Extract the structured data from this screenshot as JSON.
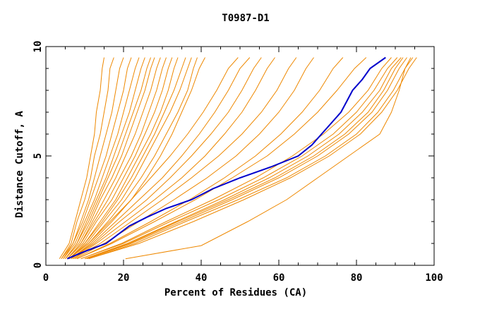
{
  "chart_data": {
    "type": "line",
    "title": "T0987-D1",
    "xlabel": "Percent of Residues (CA)",
    "ylabel": "Distance Cutoff, A",
    "xlim": [
      0,
      100
    ],
    "ylim": [
      0,
      10
    ],
    "xticks": [
      0,
      20,
      40,
      60,
      80,
      100
    ],
    "yticks": [
      0,
      5,
      10
    ],
    "grid": false,
    "colors": {
      "models": "#ee8800",
      "highlight": "#0000cc"
    },
    "highlight_series": {
      "y": [
        0.3,
        0.6,
        1.0,
        1.4,
        1.8,
        2.2,
        2.6,
        3.0,
        3.5,
        4.0,
        4.5,
        5.0,
        5.5,
        6.0,
        6.5,
        7.0,
        7.5,
        8.0,
        8.5,
        9.0,
        9.5
      ],
      "x": [
        5.5,
        9.5,
        15.5,
        18.5,
        21.5,
        26.0,
        31.0,
        37.5,
        43.0,
        50.0,
        58.0,
        65.0,
        68.5,
        71.0,
        73.5,
        76.0,
        77.5,
        79.0,
        81.5,
        83.5,
        87.5
      ]
    },
    "series": [
      {
        "y": [
          0.3,
          1,
          2,
          3,
          4,
          5,
          6,
          7,
          8,
          9,
          9.5
        ],
        "x": [
          3.5,
          6,
          7.5,
          9,
          10.5,
          11.5,
          12.5,
          13,
          14,
          14.5,
          15
        ]
      },
      {
        "y": [
          0.3,
          1,
          2,
          3,
          4,
          5,
          6,
          7,
          8,
          9,
          9.5
        ],
        "x": [
          4,
          6.5,
          8,
          10,
          11.5,
          12.5,
          14,
          15,
          16,
          16.5,
          17.5
        ]
      },
      {
        "y": [
          0.3,
          1,
          2,
          3,
          4,
          5,
          6,
          7,
          8,
          9,
          9.5
        ],
        "x": [
          4,
          7,
          9,
          11,
          12.5,
          14,
          15.5,
          17,
          18,
          19,
          20
        ]
      },
      {
        "y": [
          0.3,
          1,
          2,
          3,
          4,
          5,
          6,
          7,
          8,
          9,
          9.5
        ],
        "x": [
          4.5,
          7,
          9.5,
          11.5,
          13.5,
          15.5,
          17,
          18.5,
          20,
          21,
          22
        ]
      },
      {
        "y": [
          0.3,
          1,
          2,
          3,
          4,
          5,
          6,
          7,
          8,
          9,
          9.5
        ],
        "x": [
          4.5,
          7.5,
          10,
          12.5,
          14.5,
          16.5,
          18.5,
          20,
          21.5,
          23,
          24
        ]
      },
      {
        "y": [
          0.3,
          1,
          2,
          3,
          4,
          5,
          6,
          7,
          8,
          9,
          9.5
        ],
        "x": [
          5,
          8,
          10.5,
          13,
          15.5,
          17.5,
          19.5,
          21.5,
          23,
          24.5,
          25.5
        ]
      },
      {
        "y": [
          0.3,
          1,
          2,
          3,
          4,
          5,
          6,
          7,
          8,
          9,
          9.5
        ],
        "x": [
          5,
          8,
          11,
          13.5,
          16,
          18.5,
          20.5,
          22.5,
          24.5,
          26,
          27
        ]
      },
      {
        "y": [
          0.3,
          1,
          2,
          3,
          4,
          5,
          6,
          7,
          8,
          9,
          9.5
        ],
        "x": [
          5,
          8.5,
          11.5,
          14,
          17,
          19.5,
          21.5,
          23.5,
          25.5,
          27,
          28
        ]
      },
      {
        "y": [
          0.3,
          1,
          2,
          3,
          4,
          5,
          6,
          7,
          8,
          9,
          9.5
        ],
        "x": [
          5.5,
          9,
          12,
          15,
          18,
          20.5,
          23,
          25,
          27,
          28.5,
          29.5
        ]
      },
      {
        "y": [
          0.3,
          1,
          2,
          3,
          4,
          5,
          6,
          7,
          8,
          9,
          9.5
        ],
        "x": [
          5.5,
          9,
          12.5,
          16,
          19,
          22,
          24.5,
          26.5,
          28.5,
          30,
          31
        ]
      },
      {
        "y": [
          0.3,
          1,
          2,
          3,
          4,
          5,
          6,
          7,
          8,
          9,
          9.5
        ],
        "x": [
          5.5,
          9.5,
          13,
          17,
          20,
          23,
          25.5,
          28,
          30,
          31.5,
          32.5
        ]
      },
      {
        "y": [
          0.3,
          1,
          2,
          3,
          4,
          5,
          6,
          7,
          8,
          9,
          9.5
        ],
        "x": [
          6,
          10,
          14,
          18,
          21,
          24,
          27,
          29.5,
          31.5,
          33,
          34
        ]
      },
      {
        "y": [
          0.3,
          1,
          2,
          3,
          4,
          5,
          6,
          7,
          8,
          9,
          9.5
        ],
        "x": [
          6,
          10,
          14.5,
          18.5,
          22,
          25,
          28,
          30.5,
          33,
          35,
          36
        ]
      },
      {
        "y": [
          0.3,
          1,
          2,
          3,
          4,
          5,
          6,
          7,
          8,
          9,
          9.5
        ],
        "x": [
          6,
          10.5,
          15,
          19.5,
          23,
          26,
          29,
          32,
          34.5,
          36.5,
          37.5
        ]
      },
      {
        "y": [
          0.3,
          1,
          2,
          3,
          4,
          5,
          6,
          7,
          8,
          9,
          9.5
        ],
        "x": [
          6,
          11,
          16,
          20.5,
          24.5,
          28,
          31,
          34,
          36.5,
          38,
          39
        ]
      },
      {
        "y": [
          0.3,
          1,
          2,
          3,
          4,
          5,
          6,
          7,
          8,
          9,
          9.5
        ],
        "x": [
          6.5,
          11.5,
          17,
          22,
          26,
          29.5,
          32.5,
          35,
          37.5,
          39.5,
          41
        ]
      },
      {
        "y": [
          0.3,
          1,
          2,
          3,
          4,
          5,
          6,
          7,
          8,
          9,
          9.5
        ],
        "x": [
          6,
          11,
          16.5,
          22,
          27,
          32,
          36.5,
          40.5,
          44,
          47,
          49.5
        ]
      },
      {
        "y": [
          0.3,
          1,
          2,
          3,
          4,
          5,
          6,
          7,
          8,
          9,
          9.5
        ],
        "x": [
          6.5,
          12,
          18,
          24,
          30,
          35,
          39.5,
          43.5,
          47,
          50,
          52.5
        ]
      },
      {
        "y": [
          0.3,
          1,
          2,
          3,
          4,
          5,
          6,
          7,
          8,
          9,
          9.5
        ],
        "x": [
          6.5,
          12.5,
          19,
          26,
          32,
          37.5,
          42.5,
          47,
          50.5,
          53.5,
          55.5
        ]
      },
      {
        "y": [
          0.3,
          1,
          2,
          3,
          4,
          5,
          6,
          7,
          8,
          9,
          9.5
        ],
        "x": [
          7,
          13,
          20.5,
          28,
          35,
          41,
          46,
          50.5,
          54,
          57,
          59
        ]
      },
      {
        "y": [
          0.3,
          1,
          2,
          3,
          4,
          5,
          6,
          7,
          8,
          9,
          9.5
        ],
        "x": [
          7,
          14,
          22,
          30,
          37.5,
          44.5,
          50.5,
          55.5,
          59.5,
          62.5,
          64.5
        ]
      },
      {
        "y": [
          0.3,
          1,
          2,
          3,
          4,
          5,
          6,
          7,
          8,
          9,
          9.5
        ],
        "x": [
          7.5,
          15,
          24,
          33,
          41.5,
          49,
          55,
          60,
          64,
          67,
          69
        ]
      },
      {
        "y": [
          0.3,
          1,
          2,
          3,
          4,
          5,
          6,
          7,
          8,
          9,
          9.5
        ],
        "x": [
          8,
          16.5,
          27,
          37,
          46,
          54,
          60.5,
          66,
          70.5,
          74,
          76.5
        ]
      },
      {
        "y": [
          0.3,
          1,
          2,
          3,
          4,
          5,
          6,
          7,
          8,
          9,
          9.5
        ],
        "x": [
          8,
          17,
          28,
          38.5,
          48,
          57,
          64,
          70,
          75,
          79.5,
          82.5
        ]
      },
      {
        "y": [
          0.3,
          1,
          2,
          3,
          4,
          5,
          6,
          7,
          8,
          9,
          9.5
        ],
        "x": [
          9,
          19.5,
          31,
          43,
          54,
          63.5,
          71.5,
          78,
          83,
          86.5,
          89
        ]
      },
      {
        "y": [
          0.3,
          1,
          2,
          3,
          4,
          5,
          6,
          7,
          8,
          9,
          9.5
        ],
        "x": [
          9,
          20,
          32,
          44.5,
          56,
          66,
          74,
          80,
          84.5,
          88,
          90.5
        ]
      },
      {
        "y": [
          0.3,
          1,
          2,
          3,
          4,
          5,
          6,
          7,
          8,
          9,
          9.5
        ],
        "x": [
          10,
          21,
          33.5,
          46,
          57.5,
          67.5,
          75.5,
          81.5,
          86,
          89,
          91.5
        ]
      },
      {
        "y": [
          0.3,
          1,
          2,
          3,
          4,
          5,
          6,
          7,
          8,
          9,
          9.5
        ],
        "x": [
          10,
          21.5,
          34,
          47,
          59,
          69,
          77,
          83,
          87,
          90,
          92
        ]
      },
      {
        "y": [
          0.3,
          1,
          2,
          3,
          4,
          5,
          6,
          7,
          8,
          9,
          9.5
        ],
        "x": [
          10.5,
          22,
          35,
          48,
          60,
          70,
          78,
          84,
          88,
          91,
          93
        ]
      },
      {
        "y": [
          0.3,
          1,
          2,
          3,
          4,
          5,
          6,
          7,
          8,
          9,
          9.5
        ],
        "x": [
          11,
          23,
          36,
          49.5,
          62,
          72,
          80,
          85.5,
          89.5,
          92.5,
          94.5
        ]
      },
      {
        "y": [
          0.3,
          1,
          2,
          3,
          4,
          5,
          6,
          7,
          8,
          9,
          9.5
        ],
        "x": [
          11,
          24,
          38,
          51,
          63,
          73,
          81,
          86.5,
          90.5,
          93.5,
          95.5
        ]
      },
      {
        "y": [
          0.3,
          0.9,
          2,
          3,
          4,
          5,
          6,
          7,
          8,
          9,
          9.5
        ],
        "x": [
          20.5,
          40,
          52,
          62,
          70,
          78,
          86,
          89,
          91,
          92.5,
          94
        ]
      }
    ]
  }
}
